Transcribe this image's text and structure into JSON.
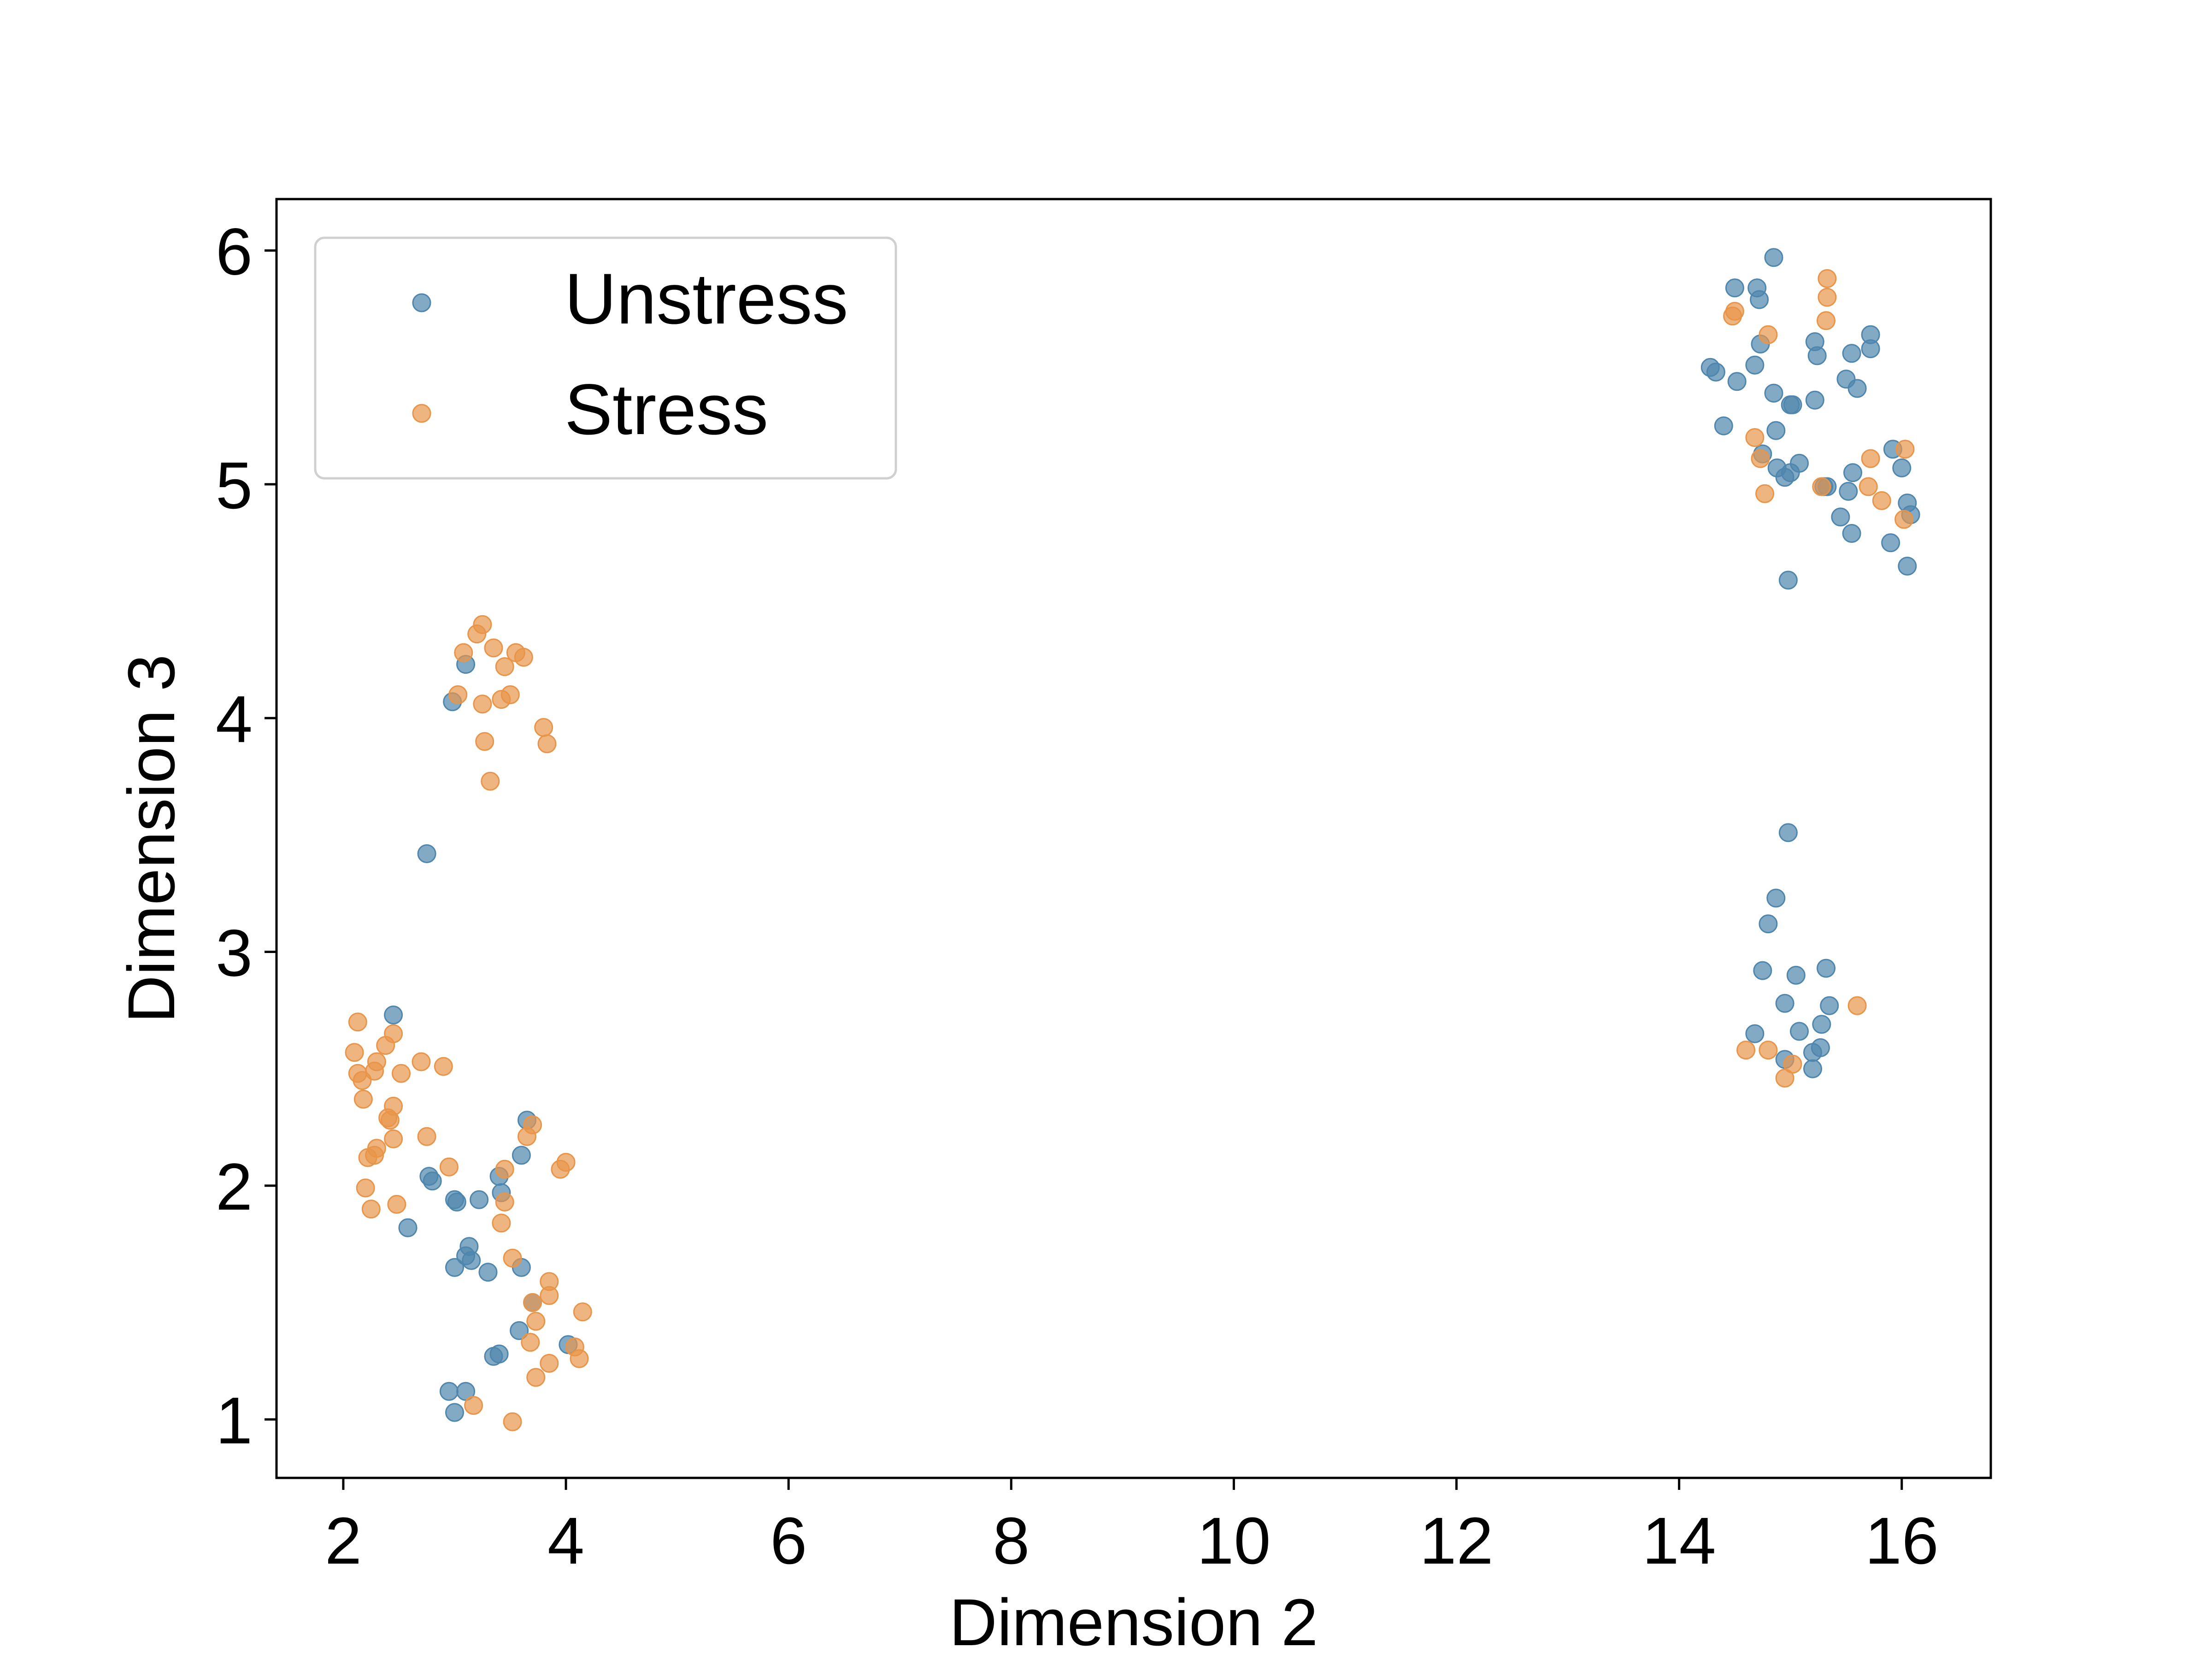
{
  "chart_data": {
    "type": "scatter",
    "title": "",
    "xlabel": "Dimension 2",
    "ylabel": "Dimension 3",
    "xlim": [
      1.4,
      16.8
    ],
    "ylim": [
      0.75,
      6.22
    ],
    "xticks": [
      2,
      4,
      6,
      8,
      10,
      12,
      14,
      16
    ],
    "yticks": [
      1,
      2,
      3,
      4,
      5,
      6
    ],
    "grid": false,
    "legend": {
      "position": "top-left"
    },
    "series": [
      {
        "name": "Unstress",
        "color": "#4f86ad",
        "points": [
          [
            14.85,
            5.97
          ],
          [
            14.5,
            5.84
          ],
          [
            14.7,
            5.84
          ],
          [
            14.72,
            5.79
          ],
          [
            14.28,
            5.5
          ],
          [
            14.33,
            5.48
          ],
          [
            14.73,
            5.6
          ],
          [
            14.68,
            5.51
          ],
          [
            14.52,
            5.44
          ],
          [
            14.85,
            5.39
          ],
          [
            15.02,
            5.34
          ],
          [
            15.0,
            5.34
          ],
          [
            14.4,
            5.25
          ],
          [
            14.87,
            5.23
          ],
          [
            15.22,
            5.61
          ],
          [
            15.24,
            5.55
          ],
          [
            15.5,
            5.45
          ],
          [
            15.55,
            5.56
          ],
          [
            15.72,
            5.64
          ],
          [
            15.72,
            5.58
          ],
          [
            15.6,
            5.41
          ],
          [
            15.22,
            5.36
          ],
          [
            14.75,
            5.13
          ],
          [
            14.88,
            5.07
          ],
          [
            14.95,
            5.03
          ],
          [
            15.0,
            5.05
          ],
          [
            15.08,
            5.09
          ],
          [
            15.3,
            4.99
          ],
          [
            15.33,
            4.99
          ],
          [
            15.52,
            4.97
          ],
          [
            15.56,
            5.05
          ],
          [
            15.45,
            4.86
          ],
          [
            15.55,
            4.79
          ],
          [
            15.92,
            5.15
          ],
          [
            16.0,
            5.07
          ],
          [
            16.05,
            4.92
          ],
          [
            16.08,
            4.87
          ],
          [
            15.9,
            4.75
          ],
          [
            16.05,
            4.65
          ],
          [
            14.98,
            4.59
          ],
          [
            14.98,
            3.51
          ],
          [
            14.87,
            3.23
          ],
          [
            14.8,
            3.12
          ],
          [
            14.75,
            2.92
          ],
          [
            15.05,
            2.9
          ],
          [
            15.32,
            2.93
          ],
          [
            14.95,
            2.78
          ],
          [
            15.35,
            2.77
          ],
          [
            15.28,
            2.69
          ],
          [
            15.08,
            2.66
          ],
          [
            14.68,
            2.65
          ],
          [
            15.2,
            2.57
          ],
          [
            15.27,
            2.59
          ],
          [
            14.95,
            2.54
          ],
          [
            15.2,
            2.5
          ],
          [
            2.98,
            4.07
          ],
          [
            3.1,
            4.23
          ],
          [
            2.75,
            3.42
          ],
          [
            2.45,
            2.73
          ],
          [
            3.65,
            2.28
          ],
          [
            3.6,
            2.13
          ],
          [
            2.77,
            2.04
          ],
          [
            2.8,
            2.02
          ],
          [
            3.4,
            2.04
          ],
          [
            3.42,
            1.97
          ],
          [
            3.0,
            1.94
          ],
          [
            3.02,
            1.93
          ],
          [
            3.22,
            1.94
          ],
          [
            2.58,
            1.82
          ],
          [
            3.13,
            1.74
          ],
          [
            3.1,
            1.7
          ],
          [
            3.15,
            1.68
          ],
          [
            3.0,
            1.65
          ],
          [
            3.3,
            1.63
          ],
          [
            3.6,
            1.65
          ],
          [
            3.7,
            1.5
          ],
          [
            3.58,
            1.38
          ],
          [
            3.4,
            1.28
          ],
          [
            3.35,
            1.27
          ],
          [
            4.02,
            1.32
          ],
          [
            2.95,
            1.12
          ],
          [
            3.1,
            1.12
          ],
          [
            3.0,
            1.03
          ]
        ]
      },
      {
        "name": "Stress",
        "color": "#e8954a",
        "points": [
          [
            15.33,
            5.88
          ],
          [
            15.33,
            5.8
          ],
          [
            15.32,
            5.7
          ],
          [
            14.5,
            5.74
          ],
          [
            14.48,
            5.72
          ],
          [
            14.8,
            5.64
          ],
          [
            14.68,
            5.2
          ],
          [
            14.73,
            5.11
          ],
          [
            15.72,
            5.11
          ],
          [
            16.03,
            5.15
          ],
          [
            15.28,
            4.99
          ],
          [
            15.7,
            4.99
          ],
          [
            15.82,
            4.93
          ],
          [
            14.77,
            4.96
          ],
          [
            16.02,
            4.85
          ],
          [
            15.6,
            2.77
          ],
          [
            14.6,
            2.58
          ],
          [
            14.8,
            2.58
          ],
          [
            15.02,
            2.52
          ],
          [
            14.95,
            2.46
          ],
          [
            3.25,
            4.4
          ],
          [
            3.2,
            4.36
          ],
          [
            3.35,
            4.3
          ],
          [
            3.55,
            4.28
          ],
          [
            3.62,
            4.26
          ],
          [
            3.08,
            4.28
          ],
          [
            3.45,
            4.22
          ],
          [
            3.42,
            4.08
          ],
          [
            3.5,
            4.1
          ],
          [
            3.03,
            4.1
          ],
          [
            3.25,
            4.06
          ],
          [
            3.8,
            3.96
          ],
          [
            3.27,
            3.9
          ],
          [
            3.83,
            3.89
          ],
          [
            3.32,
            3.73
          ],
          [
            2.13,
            2.7
          ],
          [
            2.1,
            2.57
          ],
          [
            2.3,
            2.53
          ],
          [
            2.28,
            2.49
          ],
          [
            2.38,
            2.6
          ],
          [
            2.45,
            2.65
          ],
          [
            2.13,
            2.48
          ],
          [
            2.17,
            2.45
          ],
          [
            2.52,
            2.48
          ],
          [
            2.7,
            2.53
          ],
          [
            2.9,
            2.51
          ],
          [
            2.18,
            2.37
          ],
          [
            2.45,
            2.34
          ],
          [
            2.4,
            2.29
          ],
          [
            2.42,
            2.28
          ],
          [
            2.75,
            2.21
          ],
          [
            2.45,
            2.2
          ],
          [
            2.3,
            2.16
          ],
          [
            2.28,
            2.13
          ],
          [
            2.22,
            2.12
          ],
          [
            2.95,
            2.08
          ],
          [
            3.45,
            2.07
          ],
          [
            3.7,
            2.26
          ],
          [
            3.65,
            2.21
          ],
          [
            3.95,
            2.07
          ],
          [
            4.0,
            2.1
          ],
          [
            2.2,
            1.99
          ],
          [
            2.48,
            1.92
          ],
          [
            2.25,
            1.9
          ],
          [
            3.45,
            1.93
          ],
          [
            3.42,
            1.84
          ],
          [
            3.52,
            1.69
          ],
          [
            3.85,
            1.59
          ],
          [
            3.85,
            1.53
          ],
          [
            3.7,
            1.5
          ],
          [
            3.73,
            1.42
          ],
          [
            4.15,
            1.46
          ],
          [
            3.68,
            1.33
          ],
          [
            4.08,
            1.31
          ],
          [
            4.12,
            1.26
          ],
          [
            3.85,
            1.24
          ],
          [
            3.73,
            1.18
          ],
          [
            3.17,
            1.06
          ],
          [
            3.52,
            0.99
          ]
        ]
      }
    ]
  }
}
